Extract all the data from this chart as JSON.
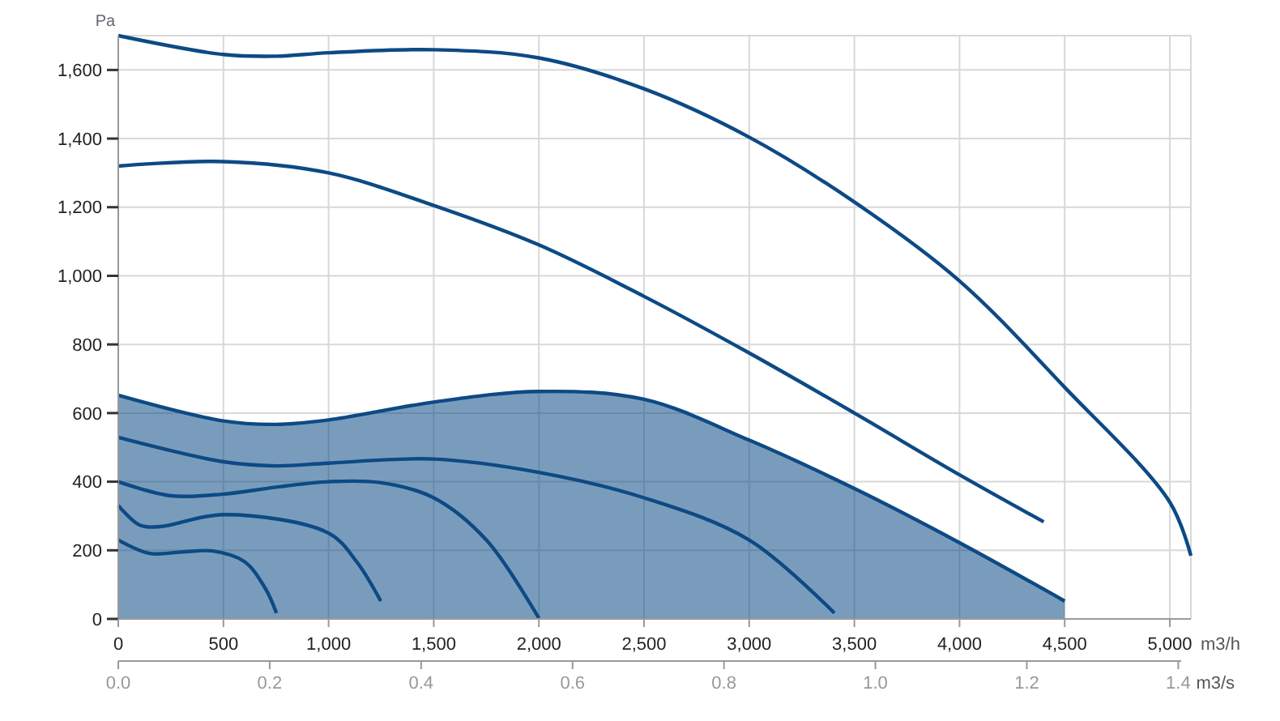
{
  "chart_data": {
    "type": "line",
    "xlabel": "m3/h",
    "ylabel": "Pa",
    "x2label": "m3/s",
    "xlim": [
      0,
      5100
    ],
    "xticks": [
      0,
      500,
      {
        "value": 1000,
        "label": "1,000"
      },
      {
        "value": 1500,
        "label": "1,500"
      },
      {
        "value": 2000,
        "label": "2,000"
      },
      {
        "value": 2500,
        "label": "2,500"
      },
      {
        "value": 3000,
        "label": "3,000"
      },
      {
        "value": 3500,
        "label": "3,500"
      },
      {
        "value": 4000,
        "label": "4,000"
      },
      {
        "value": 4500,
        "label": "4,500"
      },
      {
        "value": 5000,
        "label": "5,000"
      }
    ],
    "x2lim": [
      0,
      1.4167
    ],
    "x2ticks": [
      {
        "value": 0,
        "label": "0.0"
      },
      0.2,
      0.4,
      0.6,
      0.8,
      {
        "value": 1,
        "label": "1.0"
      },
      1.2,
      1.4
    ],
    "ylim": [
      0,
      1700
    ],
    "yticks": [
      0,
      200,
      400,
      600,
      800,
      {
        "value": 1000,
        "label": "1,000"
      },
      {
        "value": 1200,
        "label": "1,200"
      },
      {
        "value": 1400,
        "label": "1,400"
      },
      {
        "value": 1600,
        "label": "1,600"
      }
    ],
    "grid": true,
    "marker": "none",
    "line_style": "solid",
    "series": [
      {
        "type": "area",
        "color": "#0d4a85",
        "x": [
          0,
          500,
          750,
          1000,
          1500,
          2000,
          2500,
          3000,
          3500,
          4000,
          4500
        ],
        "values": [
          652,
          577,
          567,
          580,
          632,
          663,
          640,
          521,
          380,
          222,
          52
        ]
      },
      {
        "color": "#0d4a85",
        "x": [
          0,
          500,
          750,
          1000,
          1500,
          2000,
          2500,
          3000,
          3500,
          4000,
          4500,
          5000,
          5100
        ],
        "values": [
          1700,
          1645,
          1640,
          1650,
          1659,
          1635,
          1545,
          1404,
          1215,
          985,
          675,
          340,
          184
        ]
      },
      {
        "color": "#0d4a85",
        "x": [
          0,
          500,
          1000,
          1500,
          2000,
          2500,
          3000,
          3500,
          4000,
          4400
        ],
        "values": [
          1320,
          1333,
          1300,
          1205,
          1090,
          940,
          775,
          600,
          420,
          283
        ]
      },
      {
        "color": "#0d4a85",
        "x": [
          0,
          500,
          750,
          1000,
          1500,
          2000,
          2500,
          3000,
          3405
        ],
        "values": [
          529,
          458,
          446,
          454,
          466,
          427,
          353,
          230,
          17
        ]
      },
      {
        "color": "#0d4a85",
        "x": [
          0,
          250,
          500,
          750,
          1000,
          1250,
          1500,
          1750,
          2000
        ],
        "values": [
          400,
          359,
          364,
          384,
          400,
          397,
          353,
          230,
          2
        ]
      },
      {
        "color": "#0d4a85",
        "x": [
          0,
          100,
          200,
          500,
          1000,
          1133,
          1248
        ],
        "values": [
          331,
          274,
          269,
          304,
          250,
          167,
          52
        ]
      },
      {
        "color": "#0d4a85",
        "x": [
          0,
          150,
          300,
          450,
          600,
          700,
          752
        ],
        "values": [
          230,
          191,
          195,
          198,
          167,
          88,
          17
        ]
      }
    ]
  }
}
